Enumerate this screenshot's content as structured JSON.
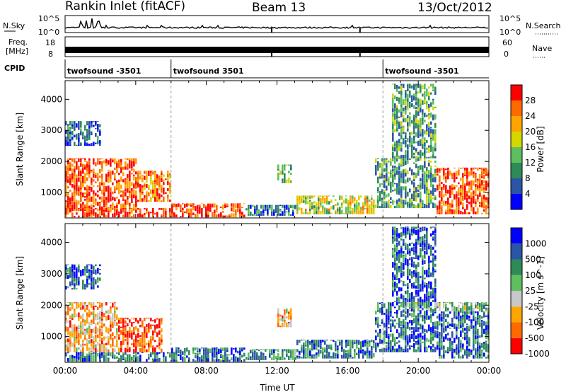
{
  "header": {
    "station": "Rankin Inlet (fitACF)",
    "beam": "Beam 13",
    "date": "13/Oct/2012"
  },
  "top_panels": {
    "nsky_label": "N.Sky",
    "nsearch_label": "N.Search",
    "nsky_ticks": [
      "10^5",
      "10^0"
    ],
    "nsearch_ticks": [
      "10^5",
      "10^0"
    ],
    "freq_label_1": "Freq.",
    "freq_label_2": "[MHz]",
    "freq_ticks": [
      "18",
      "8"
    ],
    "nave_label": "Nave",
    "nave_ticks": [
      "60",
      "0"
    ],
    "cpid_label": "CPID",
    "cpid_segments": [
      {
        "label": "twofsound -3501",
        "start_hour": 0.0
      },
      {
        "label": "twofsound 3501",
        "start_hour": 6.0
      },
      {
        "label": "twofsound -3501",
        "start_hour": 18.0
      }
    ]
  },
  "chart_data": [
    {
      "type": "heatmap",
      "name": "power",
      "ylabel": "Slant Range [km]",
      "xlabel": "Time UT",
      "x_ticks": [
        "00:00",
        "04:00",
        "08:00",
        "12:00",
        "16:00",
        "20:00",
        "00:00"
      ],
      "xlim_hours": [
        0,
        24
      ],
      "ylim_km": [
        180,
        4600
      ],
      "y_ticks": [
        1000,
        2000,
        3000,
        4000
      ],
      "colorbar_label": "Power [dB]",
      "colorbar_ticks": [
        "28",
        "24",
        "20",
        "16",
        "12",
        "8",
        "4"
      ],
      "colorbar_colors": [
        "#0000ff",
        "#2b56a6",
        "#2e8b57",
        "#5fbf5f",
        "#d6d600",
        "#ffa500",
        "#ff6a00",
        "#ff0000"
      ],
      "regions": [
        {
          "t0": 0.0,
          "t1": 4.0,
          "r0": 400,
          "r1": 2100,
          "level": 0.85
        },
        {
          "t0": 4.0,
          "t1": 5.9,
          "r0": 700,
          "r1": 1700,
          "level": 0.8
        },
        {
          "t0": 0.0,
          "t1": 6.0,
          "r0": 200,
          "r1": 500,
          "level": 0.9
        },
        {
          "t0": 6.0,
          "t1": 10.2,
          "r0": 200,
          "r1": 650,
          "level": 0.85
        },
        {
          "t0": 10.2,
          "t1": 13.0,
          "r0": 250,
          "r1": 600,
          "level": 0.25
        },
        {
          "t0": 13.0,
          "t1": 17.5,
          "r0": 300,
          "r1": 900,
          "level": 0.55
        },
        {
          "t0": 12.0,
          "t1": 12.8,
          "r0": 1300,
          "r1": 1900,
          "level": 0.45
        },
        {
          "t0": 17.5,
          "t1": 21.0,
          "r0": 500,
          "r1": 2100,
          "level": 0.35
        },
        {
          "t0": 21.0,
          "t1": 24.0,
          "r0": 300,
          "r1": 1800,
          "level": 0.85
        },
        {
          "t0": 18.5,
          "t1": 21.0,
          "r0": 2100,
          "r1": 4500,
          "level": 0.35
        },
        {
          "t0": 0.0,
          "t1": 2.0,
          "r0": 2500,
          "r1": 3300,
          "level": 0.2
        }
      ]
    },
    {
      "type": "heatmap",
      "name": "velocity",
      "ylabel": "Slant Range [km]",
      "xlabel": "Time UT",
      "x_ticks": [
        "00:00",
        "04:00",
        "08:00",
        "12:00",
        "16:00",
        "20:00",
        "00:00"
      ],
      "xlim_hours": [
        0,
        24
      ],
      "ylim_km": [
        180,
        4600
      ],
      "y_ticks": [
        1000,
        2000,
        3000,
        4000
      ],
      "colorbar_label": "Velocity [m s^-1]",
      "colorbar_ticks": [
        "1000",
        "500",
        "100",
        "25",
        "-25",
        "-100",
        "-500",
        "-1000"
      ],
      "colorbar_colors": [
        "#ff0000",
        "#ff6a00",
        "#ffa500",
        "#c8c8c8",
        "#5fbf5f",
        "#2e8b57",
        "#2b56a6",
        "#0000ff"
      ],
      "regions": [
        {
          "t0": 0.0,
          "t1": 3.0,
          "r0": 500,
          "r1": 2100,
          "level": 0.3
        },
        {
          "t0": 3.0,
          "t1": 5.5,
          "r0": 500,
          "r1": 1600,
          "level": 0.1
        },
        {
          "t0": 0.0,
          "t1": 6.0,
          "r0": 200,
          "r1": 500,
          "level": 0.75
        },
        {
          "t0": 6.0,
          "t1": 10.2,
          "r0": 200,
          "r1": 650,
          "level": 0.78
        },
        {
          "t0": 10.2,
          "t1": 13.0,
          "r0": 250,
          "r1": 600,
          "level": 0.7
        },
        {
          "t0": 13.0,
          "t1": 17.5,
          "r0": 300,
          "r1": 900,
          "level": 0.75
        },
        {
          "t0": 12.0,
          "t1": 12.8,
          "r0": 1300,
          "r1": 1900,
          "level": 0.3
        },
        {
          "t0": 17.5,
          "t1": 21.0,
          "r0": 500,
          "r1": 2100,
          "level": 0.8
        },
        {
          "t0": 19.0,
          "t1": 24.0,
          "r0": 1800,
          "r1": 2100,
          "level": 0.55
        },
        {
          "t0": 21.0,
          "t1": 24.0,
          "r0": 300,
          "r1": 1800,
          "level": 0.78
        },
        {
          "t0": 18.5,
          "t1": 21.0,
          "r0": 2100,
          "r1": 4500,
          "level": 0.82
        },
        {
          "t0": 0.0,
          "t1": 2.0,
          "r0": 2500,
          "r1": 3300,
          "level": 0.8
        }
      ]
    }
  ]
}
